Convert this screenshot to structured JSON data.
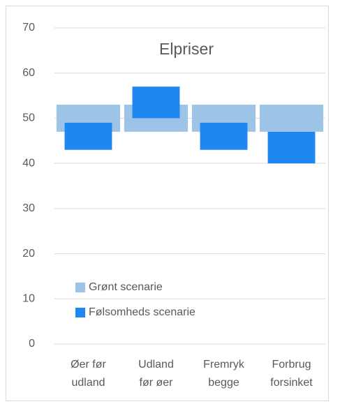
{
  "chart_data": {
    "type": "floating-bar",
    "title": "Elpriser",
    "categories": [
      [
        "Øer før",
        "udland"
      ],
      [
        "Udland",
        "før øer"
      ],
      [
        "Fremryk",
        "begge"
      ],
      [
        "Forbrug",
        "forsinket"
      ]
    ],
    "series": [
      {
        "name": "Grønt scenarie",
        "color": "#9dc3e6",
        "low": [
          47,
          47,
          47,
          47
        ],
        "high": [
          53,
          53,
          53,
          53
        ]
      },
      {
        "name": "Følsomheds scenarie",
        "color": "#1e88f0",
        "low": [
          43,
          50,
          43,
          40
        ],
        "high": [
          49,
          57,
          49,
          47
        ]
      }
    ],
    "ylim": [
      0,
      70
    ],
    "yticks": [
      0,
      10,
      20,
      30,
      40,
      50,
      60,
      70
    ],
    "grid": true
  }
}
